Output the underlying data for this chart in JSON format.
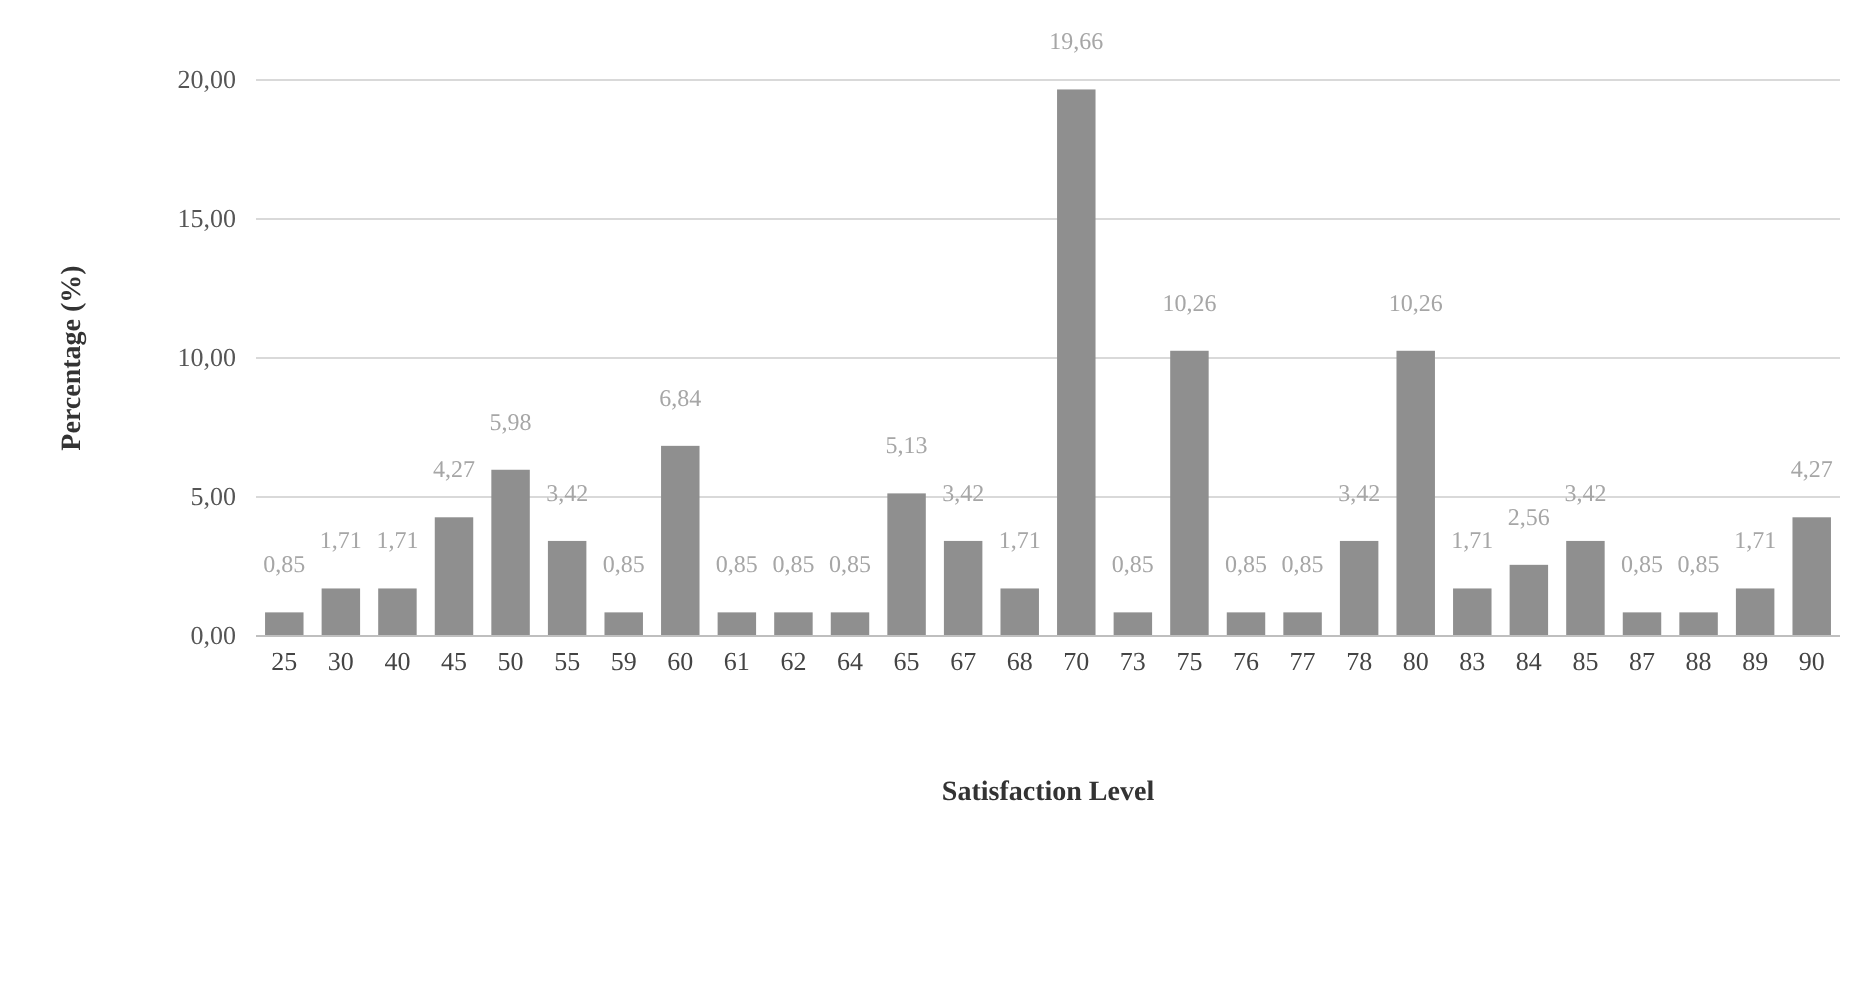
{
  "chart_data": {
    "type": "bar",
    "xlabel": "Satisfaction Level",
    "ylabel": "Percentage (%)",
    "categories": [
      "25",
      "30",
      "40",
      "45",
      "50",
      "55",
      "59",
      "60",
      "61",
      "62",
      "64",
      "65",
      "67",
      "68",
      "70",
      "73",
      "75",
      "76",
      "77",
      "78",
      "80",
      "83",
      "84",
      "85",
      "87",
      "88",
      "89",
      "90"
    ],
    "values": [
      0.85,
      1.71,
      1.71,
      4.27,
      5.98,
      3.42,
      0.85,
      6.84,
      0.85,
      0.85,
      0.85,
      5.13,
      3.42,
      1.71,
      19.66,
      0.85,
      10.26,
      0.85,
      0.85,
      3.42,
      10.26,
      1.71,
      2.56,
      3.42,
      0.85,
      0.85,
      1.71,
      4.27
    ],
    "value_labels": [
      "0,85",
      "1,71",
      "1,71",
      "4,27",
      "5,98",
      "3,42",
      "0,85",
      "6,84",
      "0,85",
      "0,85",
      "0,85",
      "5,13",
      "3,42",
      "1,71",
      "19,66",
      "0,85",
      "10,26",
      "0,85",
      "0,85",
      "3,42",
      "10,26",
      "1,71",
      "2,56",
      "3,42",
      "0,85",
      "0,85",
      "1,71",
      "4,27"
    ],
    "color": "#8f8f8f",
    "ylim": [
      0,
      20
    ],
    "yticks": [
      {
        "value": 0,
        "label": "0,00"
      },
      {
        "value": 5,
        "label": "5,00"
      },
      {
        "value": 10,
        "label": "10,00"
      },
      {
        "value": 15,
        "label": "15,00"
      },
      {
        "value": 20,
        "label": "20,00"
      }
    ],
    "grid": "y"
  }
}
